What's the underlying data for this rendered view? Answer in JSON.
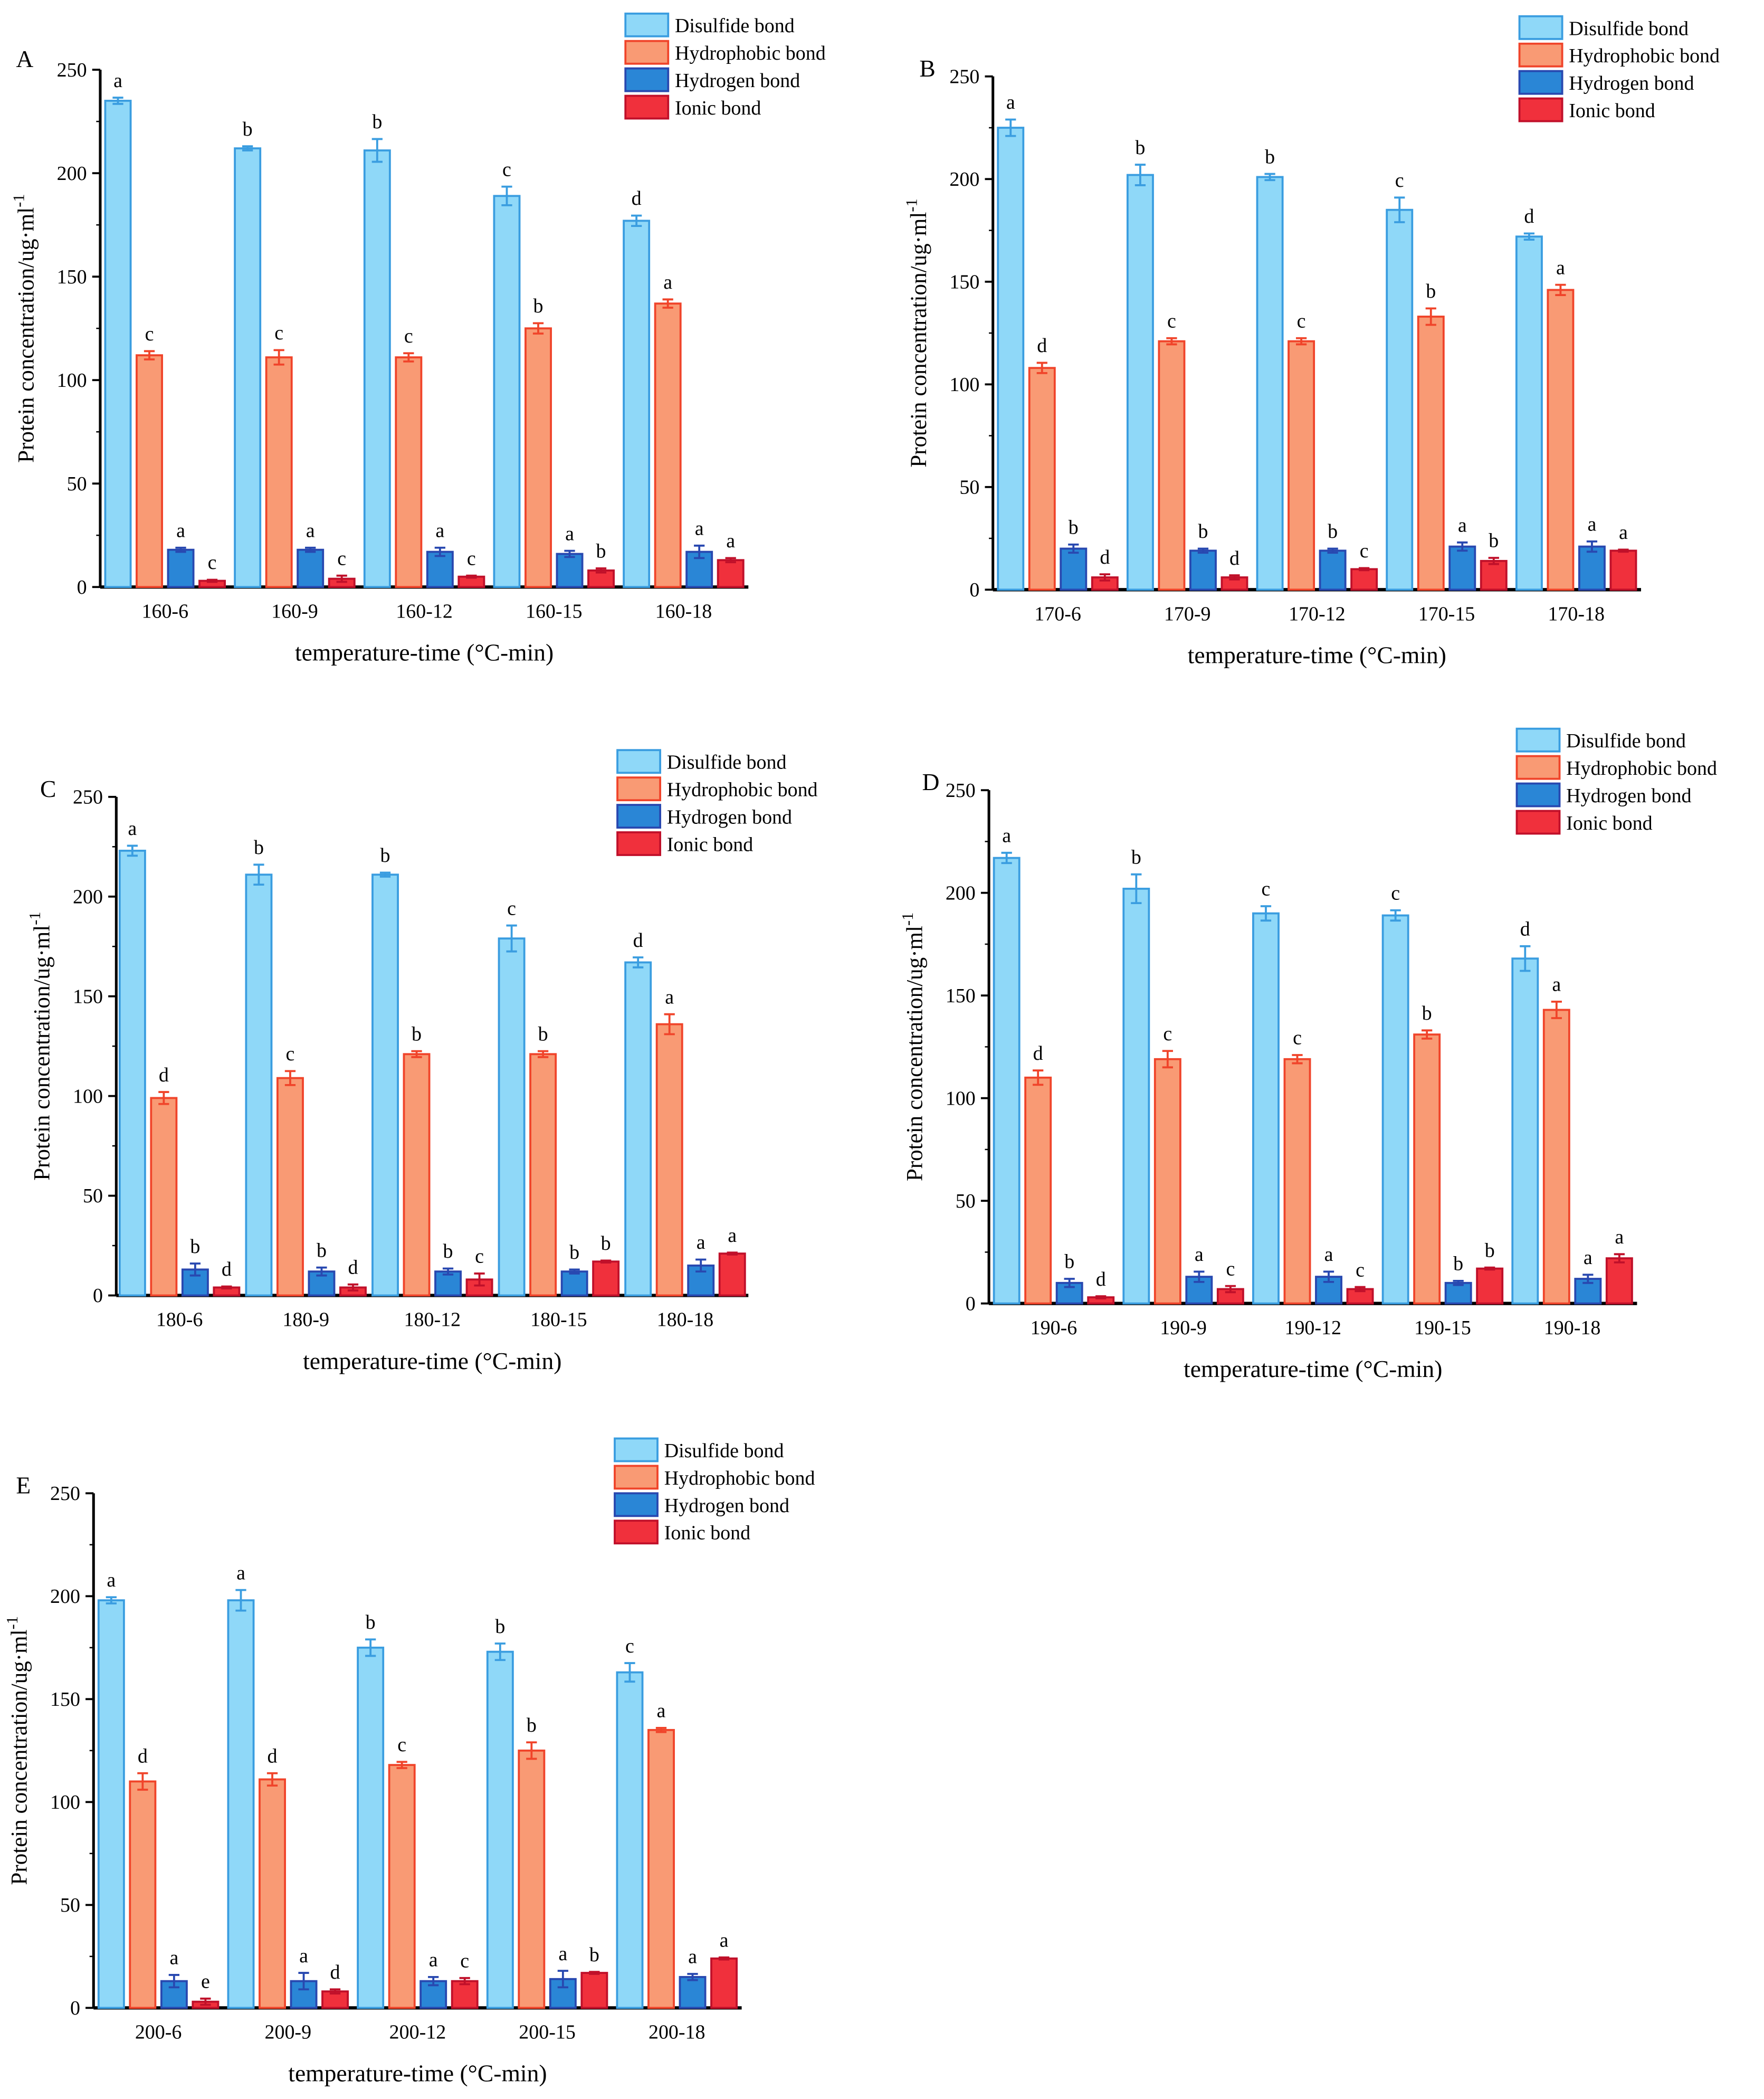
{
  "chart_data": [
    {
      "type": "bar",
      "panel_label": "A",
      "categories": [
        "160-6",
        "160-9",
        "160-12",
        "160-15",
        "160-18"
      ],
      "xlabel": "temperature-time (°C-min)",
      "ylabel": "Protein concentration/ug·ml",
      "ylabel_sup": "-1",
      "ylim": [
        0,
        250
      ],
      "yticks": [
        0,
        50,
        100,
        150,
        200,
        250
      ],
      "legend": "top-right",
      "series": [
        {
          "name": "Disulfide bond",
          "values": [
            235,
            212,
            211,
            189,
            177
          ],
          "errors": [
            1.5,
            1,
            5.5,
            4.5,
            2.5
          ],
          "letters": [
            "a",
            "b",
            "b",
            "c",
            "d"
          ],
          "fill": "#8fd8f8",
          "stroke": "#3a9de0"
        },
        {
          "name": "Hydrophobic bond",
          "values": [
            112,
            111,
            111,
            125,
            137
          ],
          "errors": [
            2,
            3.5,
            2,
            2.5,
            2
          ],
          "letters": [
            "c",
            "c",
            "c",
            "b",
            "a"
          ],
          "fill": "#f99a74",
          "stroke": "#f0442a"
        },
        {
          "name": "Hydrogen bond",
          "values": [
            18,
            18,
            17,
            16,
            17
          ],
          "errors": [
            1,
            1,
            2,
            1.5,
            3
          ],
          "letters": [
            "a",
            "a",
            "a",
            "a",
            "a"
          ],
          "fill": "#2a86d6",
          "stroke": "#2848b0"
        },
        {
          "name": "Ionic bond",
          "values": [
            3,
            4,
            5,
            8,
            13
          ],
          "errors": [
            0.5,
            1.5,
            0.5,
            1,
            1
          ],
          "letters": [
            "c",
            "c",
            "c",
            "b",
            "a"
          ],
          "fill": "#f0303c",
          "stroke": "#c0102a"
        }
      ]
    },
    {
      "type": "bar",
      "panel_label": "B",
      "categories": [
        "170-6",
        "170-9",
        "170-12",
        "170-15",
        "170-18"
      ],
      "xlabel": "temperature-time (°C-min)",
      "ylabel": "Protein concentration/ug·ml",
      "ylabel_sup": "-1",
      "ylim": [
        0,
        250
      ],
      "yticks": [
        0,
        50,
        100,
        150,
        200,
        250
      ],
      "legend": "top-right",
      "series": [
        {
          "name": "Disulfide bond",
          "values": [
            225,
            202,
            201,
            185,
            172
          ],
          "errors": [
            4,
            5,
            1.5,
            6,
            1.5
          ],
          "letters": [
            "a",
            "b",
            "b",
            "c",
            "d"
          ],
          "fill": "#8fd8f8",
          "stroke": "#3a9de0"
        },
        {
          "name": "Hydrophobic bond",
          "values": [
            108,
            121,
            121,
            133,
            146
          ],
          "errors": [
            2.5,
            1.5,
            1.5,
            4,
            2.5
          ],
          "letters": [
            "d",
            "c",
            "c",
            "b",
            "a"
          ],
          "fill": "#f99a74",
          "stroke": "#f0442a"
        },
        {
          "name": "Hydrogen bond",
          "values": [
            20,
            19,
            19,
            21,
            21
          ],
          "errors": [
            2,
            1,
            1,
            2,
            2.5
          ],
          "letters": [
            "b",
            "b",
            "b",
            "a",
            "a"
          ],
          "fill": "#2a86d6",
          "stroke": "#2848b0"
        },
        {
          "name": "Ionic bond",
          "values": [
            6,
            6,
            10,
            14,
            19
          ],
          "errors": [
            1.5,
            1,
            0.5,
            1.5,
            0.5
          ],
          "letters": [
            "d",
            "d",
            "c",
            "b",
            "a"
          ],
          "fill": "#f0303c",
          "stroke": "#c0102a"
        }
      ]
    },
    {
      "type": "bar",
      "panel_label": "C",
      "categories": [
        "180-6",
        "180-9",
        "180-12",
        "180-15",
        "180-18"
      ],
      "xlabel": "temperature-time (°C-min)",
      "ylabel": "Protein concentration/ug·ml",
      "ylabel_sup": "-1",
      "ylim": [
        0,
        250
      ],
      "yticks": [
        0,
        50,
        100,
        150,
        200,
        250
      ],
      "legend": "top-right",
      "series": [
        {
          "name": "Disulfide bond",
          "values": [
            223,
            211,
            211,
            179,
            167
          ],
          "errors": [
            2.5,
            5,
            1,
            6.5,
            2.5
          ],
          "letters": [
            "a",
            "b",
            "b",
            "c",
            "d"
          ],
          "fill": "#8fd8f8",
          "stroke": "#3a9de0"
        },
        {
          "name": "Hydrophobic bond",
          "values": [
            99,
            109,
            121,
            121,
            136
          ],
          "errors": [
            3,
            3.5,
            1.5,
            1.5,
            5
          ],
          "letters": [
            "d",
            "c",
            "b",
            "b",
            "a"
          ],
          "fill": "#f99a74",
          "stroke": "#f0442a"
        },
        {
          "name": "Hydrogen bond",
          "values": [
            13,
            12,
            12,
            12,
            15
          ],
          "errors": [
            3,
            2,
            1.5,
            1,
            3
          ],
          "letters": [
            "b",
            "b",
            "b",
            "b",
            "a"
          ],
          "fill": "#2a86d6",
          "stroke": "#2848b0"
        },
        {
          "name": "Ionic bond",
          "values": [
            4,
            4,
            8,
            17,
            21
          ],
          "errors": [
            0.5,
            1.5,
            3,
            0.5,
            0.5
          ],
          "letters": [
            "d",
            "d",
            "c",
            "b",
            "a"
          ],
          "fill": "#f0303c",
          "stroke": "#c0102a"
        }
      ]
    },
    {
      "type": "bar",
      "panel_label": "D",
      "categories": [
        "190-6",
        "190-9",
        "190-12",
        "190-15",
        "190-18"
      ],
      "xlabel": "temperature-time (°C-min)",
      "ylabel": "Protein concentration/ug·ml",
      "ylabel_sup": "-1",
      "ylim": [
        0,
        250
      ],
      "yticks": [
        0,
        50,
        100,
        150,
        200,
        250
      ],
      "legend": "top-right",
      "series": [
        {
          "name": "Disulfide bond",
          "values": [
            217,
            202,
            190,
            189,
            168
          ],
          "errors": [
            2.5,
            7,
            3.5,
            2.5,
            6
          ],
          "letters": [
            "a",
            "b",
            "c",
            "c",
            "d"
          ],
          "fill": "#8fd8f8",
          "stroke": "#3a9de0"
        },
        {
          "name": "Hydrophobic bond",
          "values": [
            110,
            119,
            119,
            131,
            143
          ],
          "errors": [
            3.5,
            4,
            2,
            2,
            4
          ],
          "letters": [
            "d",
            "c",
            "c",
            "b",
            "a"
          ],
          "fill": "#f99a74",
          "stroke": "#f0442a"
        },
        {
          "name": "Hydrogen bond",
          "values": [
            10,
            13,
            13,
            10,
            12
          ],
          "errors": [
            2,
            2.5,
            2.5,
            1,
            2
          ],
          "letters": [
            "b",
            "a",
            "a",
            "b",
            "a"
          ],
          "fill": "#2a86d6",
          "stroke": "#2848b0"
        },
        {
          "name": "Ionic bond",
          "values": [
            3,
            7,
            7,
            17,
            22
          ],
          "errors": [
            0.5,
            1.5,
            1,
            0.5,
            2
          ],
          "letters": [
            "d",
            "c",
            "c",
            "b",
            "a"
          ],
          "fill": "#f0303c",
          "stroke": "#c0102a"
        }
      ]
    },
    {
      "type": "bar",
      "panel_label": "E",
      "categories": [
        "200-6",
        "200-9",
        "200-12",
        "200-15",
        "200-18"
      ],
      "xlabel": "temperature-time (°C-min)",
      "ylabel": "Protein concentration/ug·ml",
      "ylabel_sup": "-1",
      "ylim": [
        0,
        250
      ],
      "yticks": [
        0,
        50,
        100,
        150,
        200,
        250
      ],
      "legend": "top-right",
      "series": [
        {
          "name": "Disulfide bond",
          "values": [
            198,
            198,
            175,
            173,
            163
          ],
          "errors": [
            1.5,
            5,
            4,
            4,
            4.5
          ],
          "letters": [
            "a",
            "a",
            "b",
            "b",
            "c"
          ],
          "fill": "#8fd8f8",
          "stroke": "#3a9de0"
        },
        {
          "name": "Hydrophobic bond",
          "values": [
            110,
            111,
            118,
            125,
            135
          ],
          "errors": [
            4,
            3,
            1.5,
            4,
            1
          ],
          "letters": [
            "d",
            "d",
            "c",
            "b",
            "a"
          ],
          "fill": "#f99a74",
          "stroke": "#f0442a"
        },
        {
          "name": "Hydrogen bond",
          "values": [
            13,
            13,
            13,
            14,
            15
          ],
          "errors": [
            3,
            4,
            2,
            4,
            1.5
          ],
          "letters": [
            "a",
            "a",
            "a",
            "a",
            "a"
          ],
          "fill": "#2a86d6",
          "stroke": "#2848b0"
        },
        {
          "name": "Ionic bond",
          "values": [
            3,
            8,
            13,
            17,
            24
          ],
          "errors": [
            1.5,
            1,
            1.5,
            0.5,
            0.5
          ],
          "letters": [
            "e",
            "d",
            "c",
            "b",
            "a"
          ],
          "fill": "#f0303c",
          "stroke": "#c0102a"
        }
      ]
    }
  ]
}
